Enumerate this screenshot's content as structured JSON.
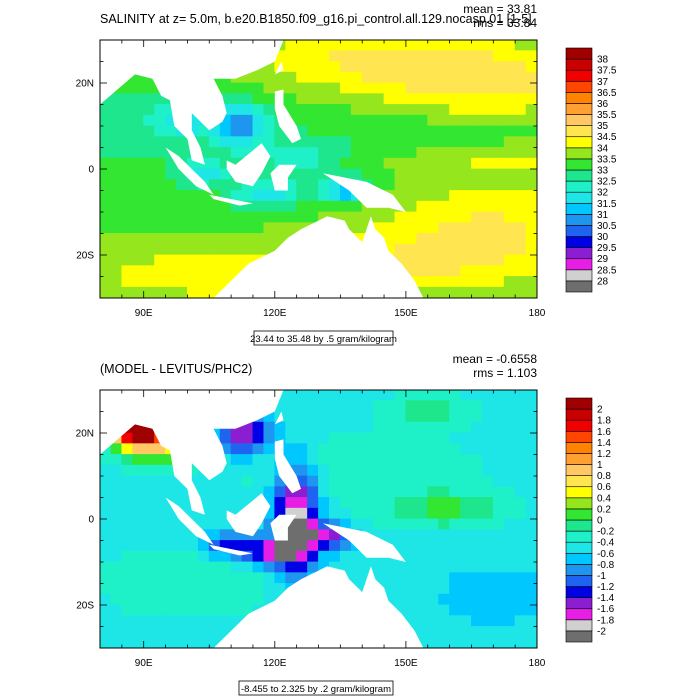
{
  "chart_data": [
    {
      "type": "heatmap",
      "title": "SALINITY at z=   5.0m, b.e20.B1850.f09_g16.pi_control.all.129.nocasp.01 [1-5]",
      "stats": {
        "mean": "mean = 33.81",
        "rms": "rms = 33.84"
      },
      "xlim": [
        80,
        180
      ],
      "ylim": [
        -30,
        30
      ],
      "x_ticks": [
        90,
        120,
        150,
        180
      ],
      "x_tick_labels": [
        "90E",
        "120E",
        "150E",
        "180"
      ],
      "y_ticks": [
        -20,
        0,
        20
      ],
      "y_tick_labels": [
        "20S",
        "0",
        "20N"
      ],
      "colorbar_labels": [
        "28",
        "28.5",
        "29",
        "29.5",
        "30",
        "30.5",
        "31",
        "31.5",
        "32",
        "32.5",
        "33",
        "33.5",
        "34",
        "34.5",
        "35",
        "35.5",
        "36",
        "36.5",
        "37",
        "37.5",
        "38"
      ],
      "colors": [
        "#6e6e6e",
        "#d0d0d0",
        "#e61ee6",
        "#8c1ed2",
        "#0000e6",
        "#1e64f0",
        "#1e96f0",
        "#00c8ff",
        "#1ee6e6",
        "#1ef0c8",
        "#1ee68c",
        "#32e632",
        "#96e61e",
        "#ffff00",
        "#ffe650",
        "#ffc864",
        "#ffa032",
        "#ff8200",
        "#ff4600",
        "#f00000",
        "#c80000",
        "#a00000"
      ],
      "base_level": 33.2,
      "footer": "23.44 to 35.48 by .5 gram/kilogram"
    },
    {
      "type": "heatmap",
      "title": "(MODEL - LEVITUS/PHC2)",
      "stats": {
        "mean": "mean = -0.6558",
        "rms": "rms = 1.103"
      },
      "xlim": [
        80,
        180
      ],
      "ylim": [
        -30,
        30
      ],
      "x_ticks": [
        90,
        120,
        150,
        180
      ],
      "x_tick_labels": [
        "90E",
        "120E",
        "150E",
        "180"
      ],
      "y_ticks": [
        -20,
        0,
        20
      ],
      "y_tick_labels": [
        "20S",
        "0",
        "20N"
      ],
      "colorbar_labels": [
        "-2",
        "-1.8",
        "-1.6",
        "-1.4",
        "-1.2",
        "-1",
        "-0.8",
        "-0.6",
        "-0.4",
        "-0.2",
        "0",
        "0.2",
        "0.4",
        "0.6",
        "0.8",
        "1",
        "1.2",
        "1.4",
        "1.6",
        "1.8",
        "2"
      ],
      "colors": [
        "#6e6e6e",
        "#d0d0d0",
        "#e61ee6",
        "#8c1ed2",
        "#0000e6",
        "#1e64f0",
        "#1e96f0",
        "#00c8ff",
        "#1ee6e6",
        "#1ef0c8",
        "#1ee68c",
        "#32e632",
        "#96e61e",
        "#ffff00",
        "#ffe650",
        "#ffc864",
        "#ffa032",
        "#ff8200",
        "#ff4600",
        "#f00000",
        "#c80000",
        "#a00000"
      ],
      "base_level": -0.5,
      "footer": "-8.455 to 2.325 by .2 gram/kilogram"
    }
  ]
}
